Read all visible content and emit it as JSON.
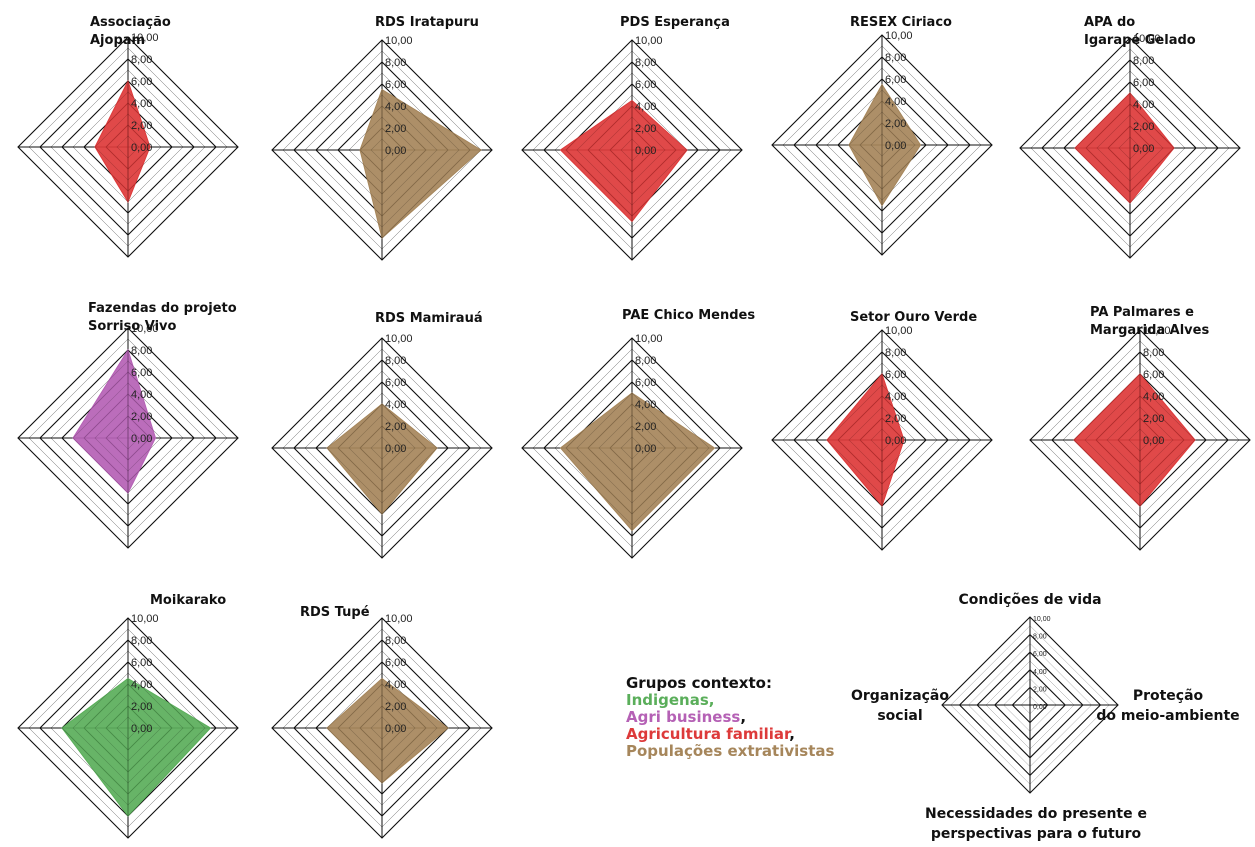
{
  "group_colors": {
    "indigenas": "#5aae5a",
    "agri": "#b561b5",
    "familiar": "#dd3a3a",
    "extrativistas": "#a6865b"
  },
  "tick_labels": [
    "10,00",
    "8,00",
    "6,00",
    "4,00",
    "2,00",
    "0,00"
  ],
  "chart_data": [
    {
      "type": "radar",
      "title": "Associação\nAjopam",
      "group": "familiar",
      "values": [
        6.0,
        2.0,
        5.0,
        3.0
      ]
    },
    {
      "type": "radar",
      "title": "RDS Iratapuru",
      "group": "extrativistas",
      "values": [
        5.5,
        9.0,
        8.0,
        2.0
      ]
    },
    {
      "type": "radar",
      "title": "PDS Esperança",
      "group": "familiar",
      "values": [
        4.5,
        5.0,
        6.5,
        6.5
      ]
    },
    {
      "type": "radar",
      "title": "RESEX Ciriaco",
      "group": "extrativistas",
      "values": [
        5.5,
        3.5,
        5.5,
        3.0
      ]
    },
    {
      "type": "radar",
      "title": "APA do\nIgarapé Gelado",
      "group": "familiar",
      "values": [
        5.0,
        4.0,
        5.0,
        5.0
      ]
    },
    {
      "type": "radar",
      "title": "Fazendas do projeto\nSorriso Vivo",
      "group": "agri",
      "values": [
        8.0,
        2.5,
        5.0,
        5.0
      ]
    },
    {
      "type": "radar",
      "title": "RDS Mamirauá",
      "group": "extrativistas",
      "values": [
        4.0,
        5.0,
        6.0,
        5.0
      ]
    },
    {
      "type": "radar",
      "title": "PAE Chico Mendes",
      "group": "extrativistas",
      "values": [
        5.0,
        7.5,
        7.5,
        6.5
      ]
    },
    {
      "type": "radar",
      "title": "Setor Ouro Verde",
      "group": "familiar",
      "values": [
        6.0,
        2.0,
        6.0,
        5.0
      ]
    },
    {
      "type": "radar",
      "title": "PA Palmares e\nMargarida Alves",
      "group": "familiar",
      "values": [
        6.0,
        5.0,
        6.0,
        6.0
      ]
    },
    {
      "type": "radar",
      "title": "Moikarako",
      "group": "indigenas",
      "values": [
        4.5,
        7.5,
        8.0,
        6.0
      ]
    },
    {
      "type": "radar",
      "title": "RDS Tupé",
      "group": "extrativistas",
      "values": [
        4.5,
        6.0,
        5.0,
        5.0
      ]
    }
  ],
  "legend": {
    "header": "Grupos contexto:",
    "items": [
      {
        "label": "Indigenas,",
        "group": "indigenas",
        "suffix": ""
      },
      {
        "label": "Agri business",
        "group": "agri",
        "suffix": ","
      },
      {
        "label": "Agricultura familiar",
        "group": "familiar",
        "suffix": ","
      },
      {
        "label": "Populações extrativistas",
        "group": "extrativistas",
        "suffix": ""
      }
    ]
  },
  "key_chart": {
    "tick_labels": [
      "10,00",
      "8,00",
      "6,00",
      "4,00",
      "2,00",
      "0,00"
    ],
    "axis_top": "Condições de vida",
    "axis_right": "Proteção\ndo meio-ambiente",
    "axis_bottom": "Necessidades do presente e\nperspectivas para o futuro",
    "axis_left": "Organização\nsocial"
  }
}
